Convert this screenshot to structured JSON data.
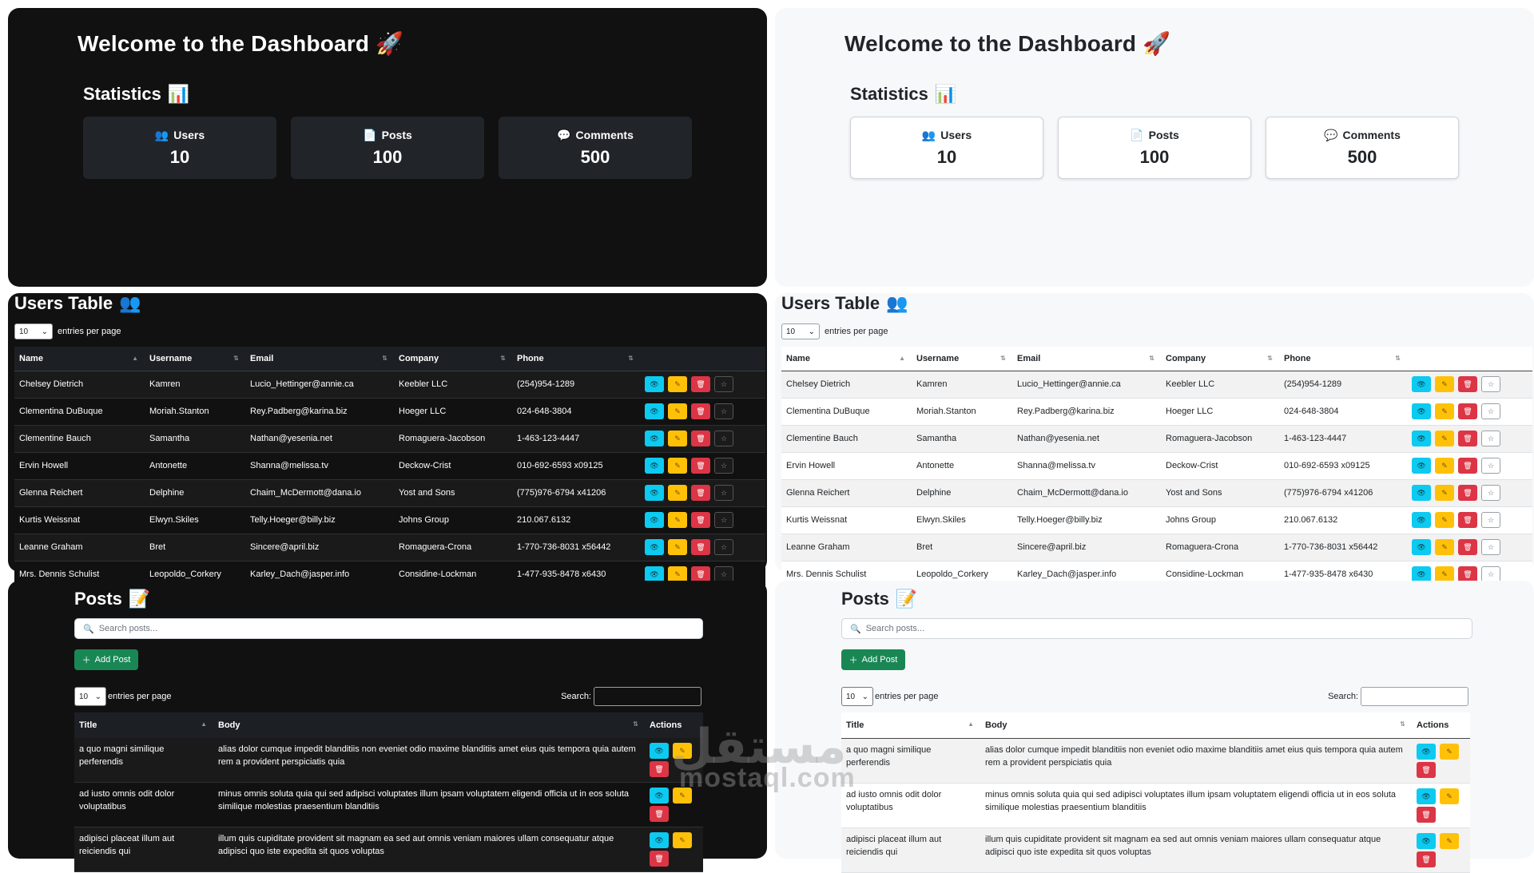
{
  "dashboard": {
    "title": "Welcome to the Dashboard",
    "title_emoji": "🚀",
    "stats_title": "Statistics",
    "stats_emoji": "📊",
    "stats": [
      {
        "icon": "👥",
        "label": "Users",
        "value": "10"
      },
      {
        "icon": "📄",
        "label": "Posts",
        "value": "100"
      },
      {
        "icon": "💬",
        "label": "Comments",
        "value": "500"
      }
    ]
  },
  "users_table": {
    "title": "Users Table",
    "title_emoji": "👥",
    "length_value": "10",
    "length_label": "entries per page",
    "columns": [
      "Name",
      "Username",
      "Email",
      "Company",
      "Phone"
    ],
    "rows": [
      {
        "name": "Chelsey Dietrich",
        "username": "Kamren",
        "email": "Lucio_Hettinger@annie.ca",
        "company": "Keebler LLC",
        "phone": "(254)954-1289"
      },
      {
        "name": "Clementina DuBuque",
        "username": "Moriah.Stanton",
        "email": "Rey.Padberg@karina.biz",
        "company": "Hoeger LLC",
        "phone": "024-648-3804"
      },
      {
        "name": "Clementine Bauch",
        "username": "Samantha",
        "email": "Nathan@yesenia.net",
        "company": "Romaguera-Jacobson",
        "phone": "1-463-123-4447"
      },
      {
        "name": "Ervin Howell",
        "username": "Antonette",
        "email": "Shanna@melissa.tv",
        "company": "Deckow-Crist",
        "phone": "010-692-6593 x09125"
      },
      {
        "name": "Glenna Reichert",
        "username": "Delphine",
        "email": "Chaim_McDermott@dana.io",
        "company": "Yost and Sons",
        "phone": "(775)976-6794 x41206"
      },
      {
        "name": "Kurtis Weissnat",
        "username": "Elwyn.Skiles",
        "email": "Telly.Hoeger@billy.biz",
        "company": "Johns Group",
        "phone": "210.067.6132"
      },
      {
        "name": "Leanne Graham",
        "username": "Bret",
        "email": "Sincere@april.biz",
        "company": "Romaguera-Crona",
        "phone": "1-770-736-8031 x56442"
      },
      {
        "name": "Mrs. Dennis Schulist",
        "username": "Leopoldo_Corkery",
        "email": "Karley_Dach@jasper.info",
        "company": "Considine-Lockman",
        "phone": "1-477-935-8478 x6430"
      }
    ],
    "action_icons": [
      "eye-icon",
      "pencil-icon",
      "trash-icon",
      "star-icon"
    ]
  },
  "posts": {
    "title": "Posts",
    "title_emoji": "📝",
    "search_placeholder": "Search posts...",
    "add_label": "Add Post",
    "length_value": "10",
    "length_label": "entries per page",
    "search_label": "Search:",
    "columns": [
      "Title",
      "Body",
      "Actions"
    ],
    "rows": [
      {
        "title": "a quo magni similique perferendis",
        "body": "alias dolor cumque impedit blanditiis non eveniet odio maxime blanditiis amet eius quis tempora quia autem rem a provident perspiciatis quia"
      },
      {
        "title": "ad iusto omnis odit dolor voluptatibus",
        "body": "minus omnis soluta quia qui sed adipisci voluptates illum ipsam voluptatem eligendi officia ut in eos soluta similique molestias praesentium blanditiis"
      },
      {
        "title": "adipisci placeat illum aut reiciendis qui",
        "body": "illum quis cupiditate provident sit magnam ea sed aut omnis veniam maiores ullam consequatur atque adipisci quo iste expedita sit quos voluptas"
      }
    ]
  },
  "watermark": {
    "arabic": "مستقل",
    "latin": "mostaql.com"
  },
  "colors": {
    "dark_bg": "#111111",
    "light_bg": "#f7f8fa",
    "info": "#0dcaf0",
    "warning": "#ffc107",
    "danger": "#dc3545",
    "success": "#198754"
  }
}
